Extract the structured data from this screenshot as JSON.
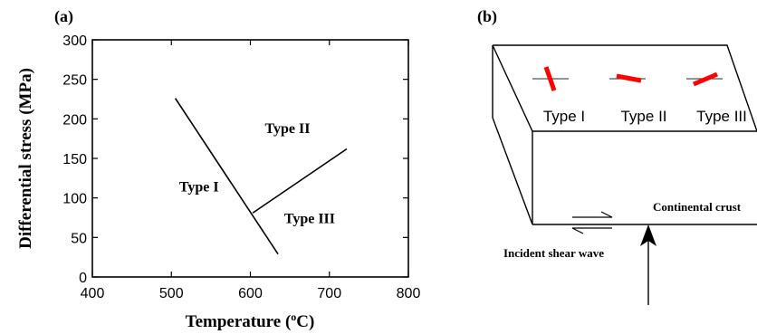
{
  "panel_a": {
    "label": "(a)",
    "xlabel_main": "Temperature (",
    "xlabel_sup": "o",
    "xlabel_end": "C)",
    "ylabel": "Differential stress (MPa)",
    "x_ticks": [
      "400",
      "500",
      "600",
      "700",
      "800"
    ],
    "y_ticks": [
      "0",
      "50",
      "100",
      "150",
      "200",
      "250",
      "300"
    ],
    "regions": [
      "Type I",
      "Type II",
      "Type III"
    ],
    "chart_data": {
      "type": "line",
      "title": "",
      "xlabel": "Temperature (oC)",
      "ylabel": "Differential stress (MPa)",
      "xlim": [
        400,
        800
      ],
      "ylim": [
        0,
        300
      ],
      "grid": false,
      "series": [
        {
          "x": [
            505,
            635
          ],
          "y": [
            226,
            29
          ]
        },
        {
          "x": [
            603,
            722
          ],
          "y": [
            81,
            162
          ]
        }
      ],
      "annotations": [
        {
          "text": "Type I",
          "x": 535,
          "y": 108
        },
        {
          "text": "Type II",
          "x": 647,
          "y": 182
        },
        {
          "text": "Type III",
          "x": 675,
          "y": 68
        }
      ]
    }
  },
  "panel_b": {
    "label": "(b)",
    "types": [
      "Type I",
      "Type II",
      "Type III"
    ],
    "crust_label": "Continental crust",
    "wave_label": "Incident shear wave",
    "accent_color": "#ff0000"
  }
}
